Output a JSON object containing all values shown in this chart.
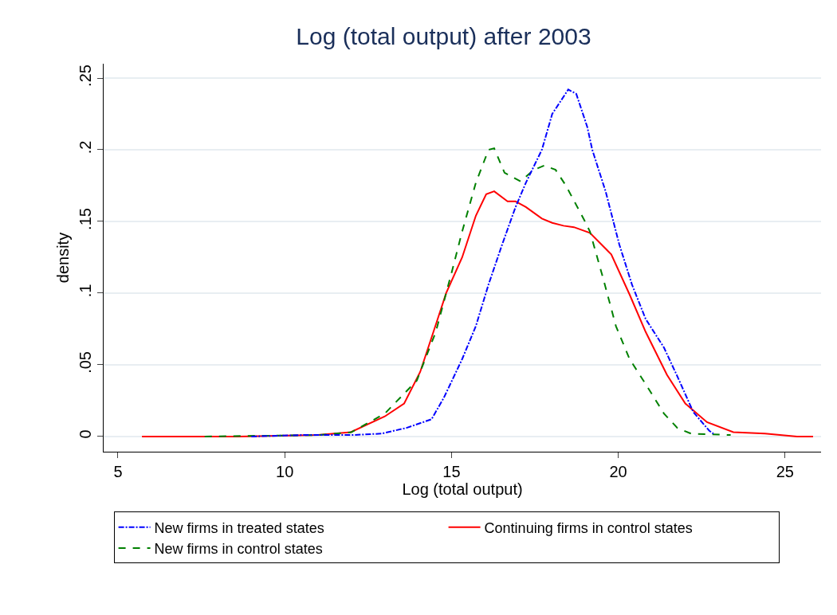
{
  "chart_data": {
    "type": "line",
    "title": "Log (total output) after 2003",
    "xlabel": "Log (total output)",
    "ylabel": "density",
    "xlim": [
      4.57,
      26.08
    ],
    "ylim": [
      -0.0106,
      0.26
    ],
    "xticks": [
      5,
      10,
      15,
      20,
      25
    ],
    "yticks": [
      {
        "value": 0,
        "label": "0"
      },
      {
        "value": 0.05,
        "label": ".05"
      },
      {
        "value": 0.1,
        "label": ".1"
      },
      {
        "value": 0.15,
        "label": ".15"
      },
      {
        "value": 0.2,
        "label": ".2"
      },
      {
        "value": 0.25,
        "label": ".25"
      }
    ],
    "grid": "y",
    "legend": "bottom",
    "marker": "none",
    "series": [
      {
        "name": "New firms in treated states",
        "color": "#0000ff",
        "line_style": "dashdot",
        "x": [
          9.0,
          10.5,
          12.0,
          12.9,
          13.65,
          14.4,
          14.77,
          15.32,
          15.73,
          16.11,
          16.52,
          16.92,
          17.23,
          17.71,
          18.02,
          18.5,
          18.74,
          19.07,
          19.22,
          19.62,
          20.03,
          20.41,
          20.82,
          21.37,
          21.77,
          22.25,
          22.73,
          22.85
        ],
        "values": [
          0.0,
          0.001,
          0.001,
          0.002,
          0.006,
          0.012,
          0.027,
          0.054,
          0.077,
          0.106,
          0.134,
          0.16,
          0.177,
          0.2,
          0.225,
          0.242,
          0.239,
          0.216,
          0.2,
          0.171,
          0.134,
          0.106,
          0.082,
          0.062,
          0.042,
          0.017,
          0.004,
          0.002
        ]
      },
      {
        "name": "Continuing firms in control states",
        "color": "#ff0000",
        "line_style": "solid",
        "x": [
          5.72,
          8.6,
          11.0,
          11.98,
          13.0,
          13.58,
          14.06,
          14.53,
          14.84,
          15.32,
          15.73,
          16.04,
          16.28,
          16.68,
          16.92,
          17.23,
          17.71,
          18.02,
          18.36,
          18.67,
          19.15,
          19.79,
          20.34,
          20.82,
          21.46,
          22.01,
          22.66,
          23.45,
          24.4,
          25.36,
          25.84
        ],
        "values": [
          0.0,
          0.0,
          0.001,
          0.003,
          0.014,
          0.023,
          0.045,
          0.078,
          0.1,
          0.125,
          0.154,
          0.169,
          0.171,
          0.164,
          0.164,
          0.16,
          0.152,
          0.149,
          0.147,
          0.146,
          0.142,
          0.127,
          0.099,
          0.073,
          0.043,
          0.023,
          0.01,
          0.003,
          0.002,
          0.0,
          0.0
        ]
      },
      {
        "name": "New firms in control states",
        "color": "#008000",
        "line_style": "dashed",
        "x": [
          7.6,
          11.0,
          12.0,
          13.0,
          13.96,
          14.53,
          15.0,
          15.32,
          15.73,
          16.11,
          16.28,
          16.59,
          17.07,
          17.47,
          17.78,
          18.12,
          18.43,
          18.98,
          19.15,
          19.55,
          19.93,
          20.34,
          20.89,
          21.37,
          21.77,
          22.18,
          23.37
        ],
        "values": [
          0.0,
          0.001,
          0.003,
          0.016,
          0.039,
          0.073,
          0.114,
          0.143,
          0.177,
          0.2,
          0.201,
          0.184,
          0.178,
          0.186,
          0.189,
          0.186,
          0.175,
          0.151,
          0.143,
          0.11,
          0.077,
          0.054,
          0.034,
          0.016,
          0.006,
          0.002,
          0.001
        ]
      }
    ]
  }
}
